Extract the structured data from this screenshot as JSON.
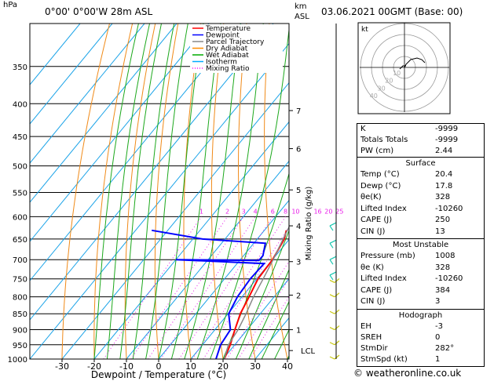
{
  "header": {
    "hpa": "hPa",
    "location": "0°00' 0°00'W  28m  ASL",
    "km": "km",
    "asl": "ASL",
    "datetime": "03.06.2021  00GMT  (Base: 00)"
  },
  "footer": {
    "credit": "© weatheronline.co.uk"
  },
  "chart_data": {
    "type": "skew-t",
    "xlabel": "Dewpoint / Temperature (°C)",
    "ylabel": "hPa",
    "right_axis_label": "Mixing Ratio (g/kg)",
    "pressure_levels": [
      350,
      400,
      450,
      500,
      550,
      600,
      650,
      700,
      750,
      800,
      850,
      900,
      950,
      1000
    ],
    "pressure_range": [
      300,
      1000
    ],
    "temperature_ticks": [
      -30,
      -20,
      -10,
      0,
      10,
      20,
      30,
      40
    ],
    "temperature_range": [
      -35,
      40
    ],
    "mixing_ratio_labels": [
      1,
      2,
      3,
      4,
      6,
      8,
      10,
      16,
      20,
      25
    ],
    "km_labels": [
      {
        "label": "7",
        "p": 410
      },
      {
        "label": "6",
        "p": 470
      },
      {
        "label": "5",
        "p": 545
      },
      {
        "label": "4",
        "p": 620
      },
      {
        "label": "3",
        "p": 705
      },
      {
        "label": "2",
        "p": 795
      },
      {
        "label": "1",
        "p": 900
      },
      {
        "label": "LCL",
        "p": 970
      }
    ],
    "legend": {
      "placement": "top-center",
      "items": [
        {
          "name": "Temperature",
          "color": "#ff0000",
          "style": "solid"
        },
        {
          "name": "Dewpoint",
          "color": "#0000ff",
          "style": "solid"
        },
        {
          "name": "Parcel Trajectory",
          "color": "#888888",
          "style": "solid"
        },
        {
          "name": "Dry Adiabat",
          "color": "#ff8c00",
          "style": "solid"
        },
        {
          "name": "Wet Adiabat",
          "color": "#00aa00",
          "style": "solid"
        },
        {
          "name": "Isotherm",
          "color": "#00aaff",
          "style": "solid"
        },
        {
          "name": "Mixing Ratio",
          "color": "#ff00ff",
          "style": "dotted"
        }
      ]
    },
    "series": [
      {
        "name": "Temperature",
        "color": "#ff0000",
        "points": [
          [
            1000,
            20.4
          ],
          [
            950,
            18.6
          ],
          [
            900,
            16.2
          ],
          [
            850,
            13.8
          ],
          [
            800,
            12.2
          ],
          [
            750,
            10.4
          ],
          [
            700,
            10.0
          ],
          [
            650,
            8.4
          ],
          [
            630,
            6.8
          ]
        ]
      },
      {
        "name": "Dewpoint",
        "color": "#0000ff",
        "points": [
          [
            1000,
            17.8
          ],
          [
            950,
            15.6
          ],
          [
            900,
            14.8
          ],
          [
            850,
            10.2
          ],
          [
            800,
            8.6
          ],
          [
            750,
            8.0
          ],
          [
            710,
            8.4
          ],
          [
            700,
            -20
          ],
          [
            702,
            6.0
          ],
          [
            690,
            6.0
          ],
          [
            660,
            3.6
          ],
          [
            650,
            -17
          ],
          [
            630,
            -35
          ]
        ]
      },
      {
        "name": "Parcel Trajectory",
        "color": "#888888",
        "points": [
          [
            1000,
            20.4
          ],
          [
            950,
            18.0
          ],
          [
            900,
            17.2
          ],
          [
            850,
            15.6
          ],
          [
            800,
            13.6
          ],
          [
            750,
            12.0
          ],
          [
            700,
            10.2
          ],
          [
            650,
            8.0
          ],
          [
            600,
            5.8
          ],
          [
            550,
            2.8
          ],
          [
            500,
            -1.2
          ],
          [
            450,
            -6.0
          ],
          [
            400,
            -12.0
          ],
          [
            350,
            -19.2
          ],
          [
            300,
            -27.6
          ]
        ]
      }
    ],
    "hodograph_label": "kt",
    "hodograph_ring_labels": [
      "10",
      "20",
      "30",
      "40"
    ]
  },
  "table": {
    "top": [
      {
        "key": "K",
        "value": "-9999"
      },
      {
        "key": "Totals Totals",
        "value": "-9999"
      },
      {
        "key": "PW (cm)",
        "value": "2.44"
      }
    ],
    "surface": {
      "title": "Surface",
      "rows": [
        {
          "key": "Temp (°C)",
          "value": "20.4"
        },
        {
          "key": "Dewp (°C)",
          "value": "17.8"
        },
        {
          "key": "θe(K)",
          "value": "328"
        },
        {
          "key": "Lifted Index",
          "value": "-10260"
        },
        {
          "key": "CAPE (J)",
          "value": "250"
        },
        {
          "key": "CIN (J)",
          "value": "13"
        }
      ]
    },
    "most_unstable": {
      "title": "Most Unstable",
      "rows": [
        {
          "key": "Pressure (mb)",
          "value": "1008"
        },
        {
          "key": "θe (K)",
          "value": "328"
        },
        {
          "key": "Lifted Index",
          "value": "-10260"
        },
        {
          "key": "CAPE (J)",
          "value": "384"
        },
        {
          "key": "CIN (J)",
          "value": "3"
        }
      ]
    },
    "hodograph": {
      "title": "Hodograph",
      "rows": [
        {
          "key": "EH",
          "value": "-3"
        },
        {
          "key": "SREH",
          "value": "0"
        },
        {
          "key": "StmDir",
          "value": "282°"
        },
        {
          "key": "StmSpd (kt)",
          "value": "1"
        }
      ]
    }
  }
}
